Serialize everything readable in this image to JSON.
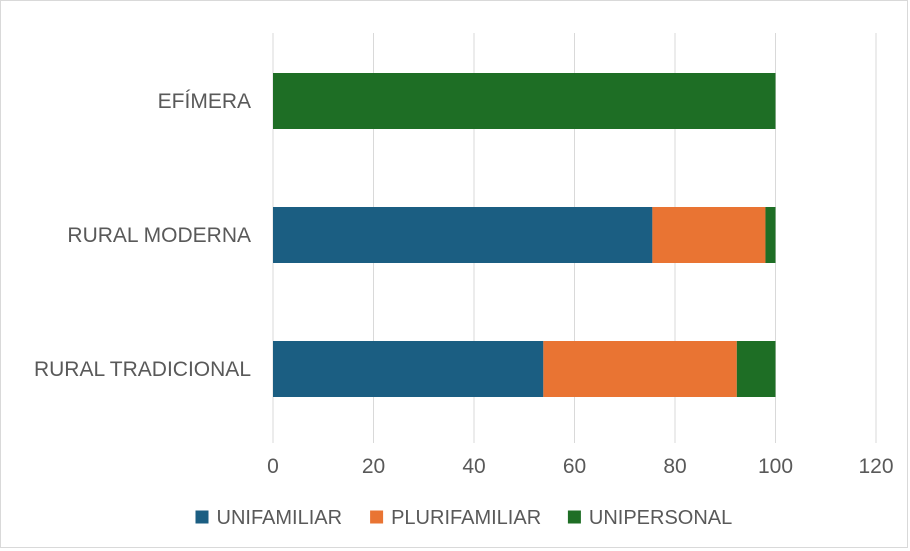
{
  "chart_data": {
    "type": "bar",
    "orientation": "horizontal",
    "stacked": true,
    "categories": [
      "EFÍMERA",
      "RURAL MODERNA",
      "RURAL TRADICIONAL"
    ],
    "series": [
      {
        "name": "UNIFAMILIAR",
        "color": "#1b5e82",
        "values": [
          0,
          75.5,
          53.8
        ]
      },
      {
        "name": "PLURIFAMILIAR",
        "color": "#e97433",
        "values": [
          0,
          22.5,
          38.5
        ]
      },
      {
        "name": "UNIPERSONAL",
        "color": "#1e6e25",
        "values": [
          100,
          2,
          7.7
        ]
      }
    ],
    "x_ticks": [
      "0",
      "20",
      "40",
      "60",
      "80",
      "100",
      "120"
    ],
    "xlim": [
      0,
      120
    ],
    "grid": "vertical",
    "legend_position": "bottom"
  }
}
